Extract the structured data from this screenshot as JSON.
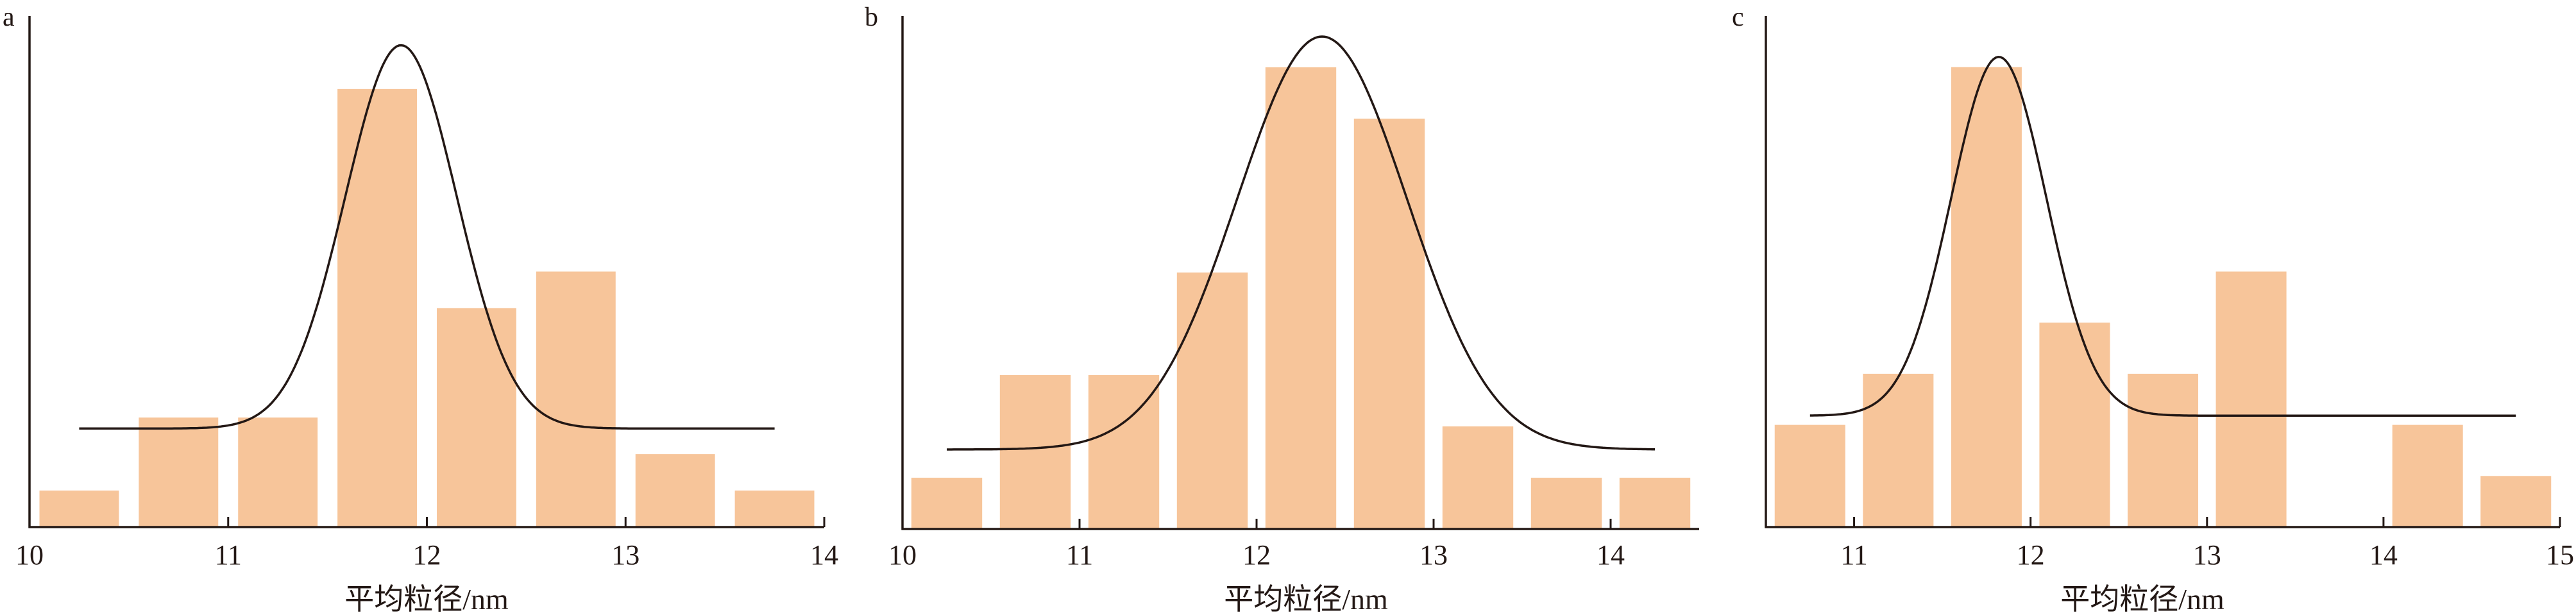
{
  "colors": {
    "bar": "#f7c59a",
    "curve": "#231815",
    "axis": "#231815"
  },
  "chart_data": [
    {
      "type": "bar",
      "panel_label": "a",
      "xlabel": "平均粒径/nm",
      "ylabel": "",
      "xlim": [
        10,
        14
      ],
      "ylim": [
        0,
        14
      ],
      "xticks": [
        "10",
        "11",
        "12",
        "13",
        "14"
      ],
      "bin_width": 0.5,
      "bin_centers": [
        10.25,
        10.75,
        11.25,
        11.75,
        12.25,
        12.75,
        13.25,
        13.75
      ],
      "values": [
        1,
        3,
        3,
        12,
        6,
        7,
        2,
        1
      ],
      "fit": {
        "x_range": [
          10.25,
          13.75
        ],
        "baseline": 2.7,
        "peak": 13.2,
        "center": 11.87,
        "sigma": 0.28
      },
      "grid": false
    },
    {
      "type": "bar",
      "panel_label": "b",
      "xlabel": "平均粒径/nm",
      "ylabel": "",
      "xlim": [
        10,
        14.5
      ],
      "ylim": [
        0,
        10
      ],
      "xticks": [
        "10",
        "11",
        "12",
        "13",
        "14"
      ],
      "bin_width": 0.5,
      "bin_centers": [
        10.25,
        10.75,
        11.25,
        11.75,
        12.25,
        12.75,
        13.25,
        13.75,
        14.25
      ],
      "values": [
        1,
        3,
        3,
        5,
        9,
        8,
        2,
        1,
        1
      ],
      "fit": {
        "x_range": [
          10.25,
          14.25
        ],
        "baseline": 1.55,
        "peak": 9.6,
        "center": 12.37,
        "sigma": 0.48
      },
      "grid": false
    },
    {
      "type": "bar",
      "panel_label": "c",
      "xlabel": "平均粒径/nm",
      "ylabel": "",
      "xlim": [
        10.5,
        15
      ],
      "ylim": [
        0,
        10
      ],
      "xticks": [
        "11",
        "12",
        "13",
        "14",
        "15"
      ],
      "bin_width": 0.5,
      "bin_centers": [
        10.75,
        11.25,
        11.75,
        12.25,
        12.75,
        13.25,
        13.75,
        14.25,
        14.75
      ],
      "values": [
        2,
        3,
        9,
        4,
        3,
        5,
        0,
        2,
        1
      ],
      "fit": {
        "x_range": [
          10.75,
          14.75
        ],
        "baseline": 2.18,
        "peak": 9.2,
        "center": 11.82,
        "sigma": 0.27
      },
      "grid": false
    }
  ]
}
